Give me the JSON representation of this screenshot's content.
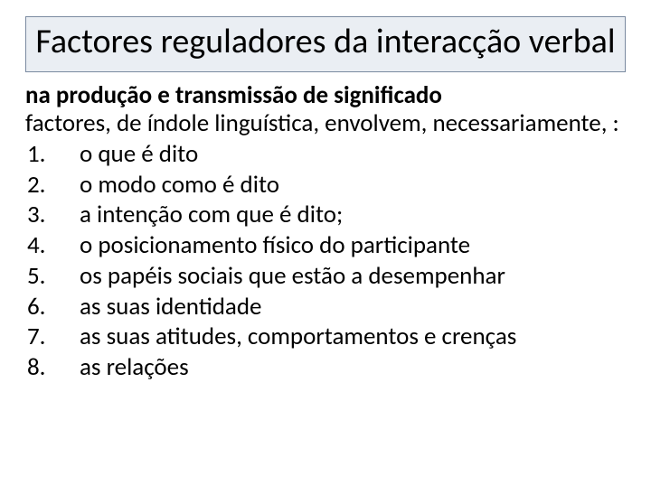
{
  "title": "Factores reguladores da interacção verbal",
  "lead_bold": "na produção e transmissão de significado",
  "lead_regular": "factores, de índole linguística, envolvem, necessariamente, :",
  "items": [
    {
      "num": "1.",
      "text": "o que é dito"
    },
    {
      "num": "2.",
      "text": " o modo como é dito"
    },
    {
      "num": "3.",
      "text": "a intenção com que é dito;"
    },
    {
      "num": "4.",
      "text": "o posicionamento físico do participante"
    },
    {
      "num": "5.",
      "text": "os papéis sociais que estão a desempenhar"
    },
    {
      "num": "6.",
      "text": "as suas identidade"
    },
    {
      "num": "7.",
      "text": "as suas atitudes, comportamentos e crenças"
    },
    {
      "num": "8.",
      "text": "as relações"
    }
  ],
  "colors": {
    "title_bg": "#eaeef3",
    "title_border": "#7a8aa0",
    "text": "#000000",
    "page_bg": "#ffffff"
  },
  "fonts": {
    "title_size_pt": 28,
    "body_size_pt": 20
  }
}
